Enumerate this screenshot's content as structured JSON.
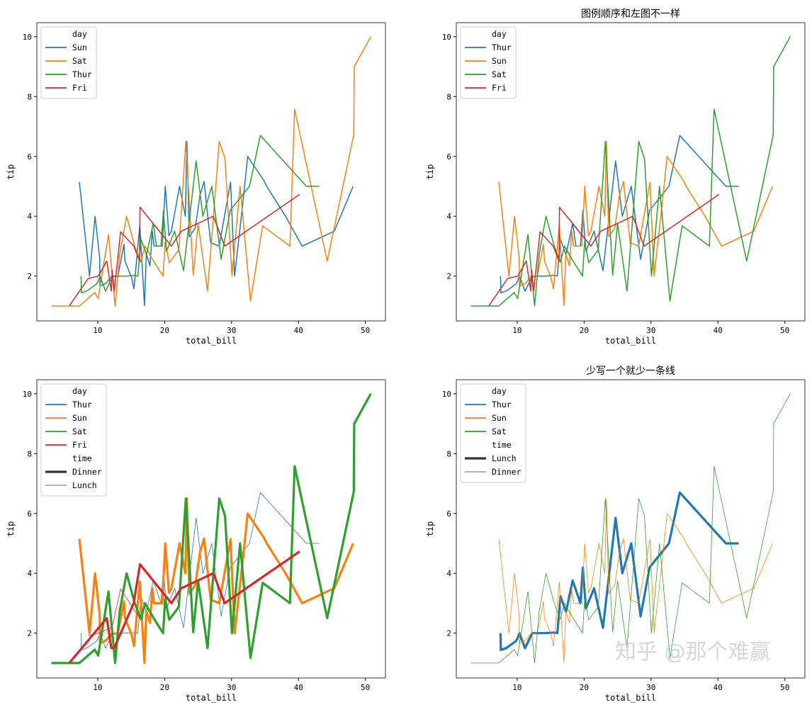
{
  "tips": {
    "Thur": [
      [
        7.51,
        2,
        "Lunch"
      ],
      [
        7.56,
        1.44,
        "Lunch"
      ],
      [
        8.35,
        1.5,
        "Lunch"
      ],
      [
        9.78,
        1.73,
        "Lunch"
      ],
      [
        10.07,
        1.83,
        "Lunch"
      ],
      [
        10.34,
        2,
        "Lunch"
      ],
      [
        11.17,
        1.5,
        "Lunch"
      ],
      [
        12.26,
        2,
        "Lunch"
      ],
      [
        12.69,
        2,
        "Lunch"
      ],
      [
        13.03,
        2,
        "Lunch"
      ],
      [
        13.81,
        2,
        "Lunch"
      ],
      [
        14.15,
        2,
        "Lunch"
      ],
      [
        15.48,
        2.02,
        "Lunch"
      ],
      [
        16.0,
        2,
        "Lunch"
      ],
      [
        16.47,
        3.23,
        "Lunch"
      ],
      [
        17.29,
        2.71,
        "Lunch"
      ],
      [
        18.29,
        3.76,
        "Lunch"
      ],
      [
        18.78,
        3,
        "Dinner"
      ],
      [
        19.44,
        3,
        "Lunch"
      ],
      [
        19.81,
        4.19,
        "Lunch"
      ],
      [
        20.27,
        2.83,
        "Lunch"
      ],
      [
        21.5,
        3.5,
        "Lunch"
      ],
      [
        22.82,
        2.18,
        "Lunch"
      ],
      [
        24.71,
        5.85,
        "Lunch"
      ],
      [
        25.71,
        4,
        "Lunch"
      ],
      [
        27.05,
        5,
        "Lunch"
      ],
      [
        28.44,
        2.56,
        "Lunch"
      ],
      [
        29.8,
        4.2,
        "Lunch"
      ],
      [
        32.68,
        5,
        "Lunch"
      ],
      [
        34.3,
        6.7,
        "Lunch"
      ],
      [
        41.19,
        5,
        "Lunch"
      ],
      [
        43.11,
        5,
        "Lunch"
      ]
    ],
    "Sun": [
      [
        7.25,
        5.15,
        "Dinner"
      ],
      [
        8.77,
        2,
        "Dinner"
      ],
      [
        9.6,
        4,
        "Dinner"
      ],
      [
        10.29,
        2.6,
        "Dinner"
      ],
      [
        10.34,
        1.66,
        "Dinner"
      ],
      [
        11.24,
        1.76,
        "Dinner"
      ],
      [
        12.02,
        1.97,
        "Dinner"
      ],
      [
        13.0,
        2,
        "Dinner"
      ],
      [
        13.94,
        3.06,
        "Dinner"
      ],
      [
        14.07,
        2.5,
        "Dinner"
      ],
      [
        15.04,
        1.96,
        "Dinner"
      ],
      [
        15.42,
        1.57,
        "Dinner"
      ],
      [
        16.29,
        3.71,
        "Dinner"
      ],
      [
        16.99,
        1.01,
        "Dinner"
      ],
      [
        17.26,
        2.74,
        "Dinner"
      ],
      [
        17.81,
        2.34,
        "Dinner"
      ],
      [
        18.15,
        3.5,
        "Dinner"
      ],
      [
        18.43,
        3,
        "Dinner"
      ],
      [
        19.65,
        3,
        "Dinner"
      ],
      [
        20.09,
        5.0,
        "Dinner"
      ],
      [
        20.65,
        3.35,
        "Dinner"
      ],
      [
        21.01,
        3.5,
        "Dinner"
      ],
      [
        22.23,
        5,
        "Dinner"
      ],
      [
        23.1,
        4,
        "Dinner"
      ],
      [
        23.33,
        6.5,
        "Dinner"
      ],
      [
        23.68,
        3.31,
        "Dinner"
      ],
      [
        24.59,
        3.61,
        "Dinner"
      ],
      [
        25.29,
        4.71,
        "Dinner"
      ],
      [
        25.89,
        5.16,
        "Dinner"
      ],
      [
        26.88,
        3.12,
        "Dinner"
      ],
      [
        28.15,
        3,
        "Dinner"
      ],
      [
        29.85,
        5.14,
        "Dinner"
      ],
      [
        30.46,
        2,
        "Dinner"
      ],
      [
        31.71,
        4.5,
        "Dinner"
      ],
      [
        32.4,
        6,
        "Dinner"
      ],
      [
        34.81,
        5.2,
        "Dinner"
      ],
      [
        35.26,
        5,
        "Dinner"
      ],
      [
        38.07,
        4,
        "Dinner"
      ],
      [
        40.55,
        3,
        "Dinner"
      ],
      [
        45.35,
        3.5,
        "Dinner"
      ],
      [
        48.17,
        5,
        "Dinner"
      ]
    ],
    "Sat": [
      [
        3.07,
        1,
        "Dinner"
      ],
      [
        7.25,
        1,
        "Dinner"
      ],
      [
        9.55,
        1.45,
        "Dinner"
      ],
      [
        10.07,
        1.25,
        "Dinner"
      ],
      [
        11.61,
        3.39,
        "Dinner"
      ],
      [
        12.6,
        1,
        "Dinner"
      ],
      [
        13.28,
        2.72,
        "Dinner"
      ],
      [
        14.31,
        4,
        "Dinner"
      ],
      [
        15.53,
        3,
        "Dinner"
      ],
      [
        16.45,
        2.47,
        "Dinner"
      ],
      [
        17.07,
        3,
        "Dinner"
      ],
      [
        18.35,
        2.5,
        "Dinner"
      ],
      [
        19.77,
        2,
        "Dinner"
      ],
      [
        20.08,
        3.15,
        "Dinner"
      ],
      [
        20.69,
        2.45,
        "Dinner"
      ],
      [
        22.12,
        2.88,
        "Dinner"
      ],
      [
        23.17,
        6.5,
        "Dinner"
      ],
      [
        24.27,
        2.03,
        "Dinner"
      ],
      [
        25.0,
        3.75,
        "Dinner"
      ],
      [
        26.41,
        1.5,
        "Dinner"
      ],
      [
        28.17,
        6.5,
        "Dinner"
      ],
      [
        29.03,
        5.92,
        "Dinner"
      ],
      [
        30.06,
        2,
        "Dinner"
      ],
      [
        31.27,
        5,
        "Dinner"
      ],
      [
        32.83,
        1.17,
        "Dinner"
      ],
      [
        34.65,
        3.68,
        "Dinner"
      ],
      [
        38.73,
        3,
        "Dinner"
      ],
      [
        39.42,
        7.58,
        "Dinner"
      ],
      [
        44.3,
        2.5,
        "Dinner"
      ],
      [
        48.27,
        6.73,
        "Dinner"
      ],
      [
        48.33,
        9,
        "Dinner"
      ],
      [
        50.81,
        10,
        "Dinner"
      ]
    ],
    "Fri": [
      [
        5.75,
        1,
        "Dinner"
      ],
      [
        8.58,
        1.92,
        "Lunch"
      ],
      [
        10.09,
        2,
        "Lunch"
      ],
      [
        11.35,
        2.5,
        "Dinner"
      ],
      [
        12.03,
        1.5,
        "Dinner"
      ],
      [
        12.16,
        2.2,
        "Lunch"
      ],
      [
        12.46,
        1.5,
        "Dinner"
      ],
      [
        13.42,
        3.48,
        "Lunch"
      ],
      [
        15.38,
        3,
        "Dinner"
      ],
      [
        16.27,
        2.5,
        "Lunch"
      ],
      [
        16.32,
        4.3,
        "Dinner"
      ],
      [
        21.01,
        3,
        "Dinner"
      ],
      [
        22.49,
        3.5,
        "Dinner"
      ],
      [
        27.28,
        4,
        "Dinner"
      ],
      [
        28.97,
        3,
        "Dinner"
      ],
      [
        40.17,
        4.73,
        "Dinner"
      ]
    ]
  },
  "colors": {
    "blue": "#1f77b4",
    "orange": "#ff7f0e",
    "green": "#2ca02c",
    "red": "#d62728",
    "size_legend": "#333333"
  },
  "chart_data": [
    {
      "type": "line",
      "title": "",
      "xlabel": "total_bill",
      "ylabel": "tip",
      "xlim": [
        0.9,
        53
      ],
      "ylim": [
        0.5,
        10.47
      ],
      "xticks": [
        10,
        20,
        30,
        40,
        50
      ],
      "yticks": [
        2,
        4,
        6,
        8,
        10
      ],
      "legend": {
        "hue_title": "day",
        "hue": [
          "Sun",
          "Sat",
          "Thur",
          "Fri"
        ],
        "size_title": "",
        "size": []
      },
      "hue_colors": [
        "#1f77b4",
        "#ff7f0e",
        "#2ca02c",
        "#d62728"
      ],
      "size_widths": {}
    },
    {
      "type": "line",
      "title": "图例顺序和左图不一样",
      "xlabel": "total_bill",
      "ylabel": "tip",
      "xlim": [
        0.9,
        53
      ],
      "ylim": [
        0.5,
        10.47
      ],
      "xticks": [
        10,
        20,
        30,
        40,
        50
      ],
      "yticks": [
        2,
        4,
        6,
        8,
        10
      ],
      "legend": {
        "hue_title": "day",
        "hue": [
          "Thur",
          "Sun",
          "Sat",
          "Fri"
        ],
        "size_title": "",
        "size": []
      },
      "hue_colors": [
        "#1f77b4",
        "#ff7f0e",
        "#2ca02c",
        "#d62728"
      ],
      "size_widths": {}
    },
    {
      "type": "line",
      "title": "",
      "xlabel": "total_bill",
      "ylabel": "tip",
      "xlim": [
        0.9,
        53
      ],
      "ylim": [
        0.5,
        10.47
      ],
      "xticks": [
        10,
        20,
        30,
        40,
        50
      ],
      "yticks": [
        2,
        4,
        6,
        8,
        10
      ],
      "legend": {
        "hue_title": "day",
        "hue": [
          "Thur",
          "Sun",
          "Sat",
          "Fri"
        ],
        "size_title": "time",
        "size": [
          "Dinner",
          "Lunch"
        ]
      },
      "hue_colors": [
        "#1f77b4",
        "#ff7f0e",
        "#2ca02c",
        "#d62728"
      ],
      "size_widths": {
        "Dinner": 3.2,
        "Lunch": 0.8
      }
    },
    {
      "type": "line",
      "title": "少写一个就少一条线",
      "xlabel": "total_bill",
      "ylabel": "tip",
      "xlim": [
        0.9,
        53
      ],
      "ylim": [
        0.5,
        10.47
      ],
      "xticks": [
        10,
        20,
        30,
        40,
        50
      ],
      "yticks": [
        2,
        4,
        6,
        8,
        10
      ],
      "legend": {
        "hue_title": "day",
        "hue": [
          "Thur",
          "Sun",
          "Sat"
        ],
        "size_title": "time",
        "size": [
          "Lunch",
          "Dinner"
        ]
      },
      "hue_colors": [
        "#1f77b4",
        "#ff7f0e",
        "#2ca02c"
      ],
      "size_widths": {
        "Lunch": 3.2,
        "Dinner": 0.8
      }
    }
  ],
  "watermark": "知乎 @那个难赢"
}
